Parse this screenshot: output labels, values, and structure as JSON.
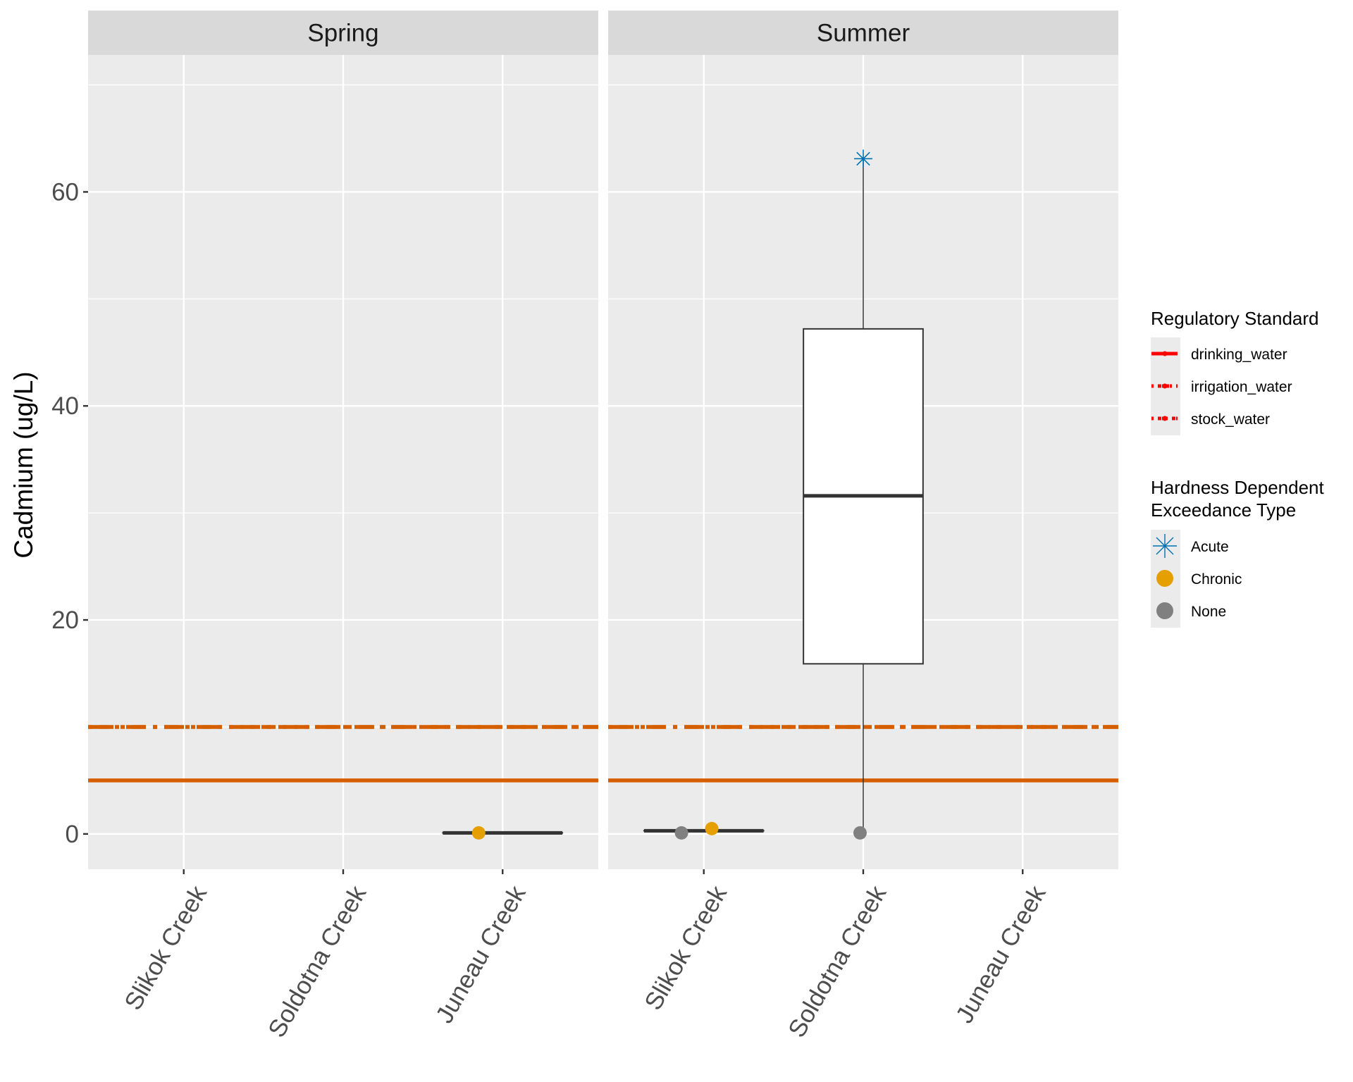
{
  "chart_data": {
    "type": "boxplot",
    "ylabel": "Cadmium (ug/L)",
    "xlabel": "",
    "ylim": [
      -3.3,
      72.8
    ],
    "y_ticks": [
      0,
      20,
      40,
      60
    ],
    "y_tick_labels": [
      "0",
      "20",
      "40",
      "60"
    ],
    "grid": true,
    "categories": [
      "Slikok Creek",
      "Soldotna Creek",
      "Juneau Creek"
    ],
    "facets": [
      {
        "name": "Spring",
        "boxes": [
          {
            "category": "Juneau Creek",
            "min": 0.1,
            "q1": 0.1,
            "median": 0.1,
            "q3": 0.1,
            "max": 0.1
          }
        ],
        "points": [
          {
            "category": "Juneau Creek",
            "value": 0.1,
            "type": "Chronic",
            "jitter": -0.15
          }
        ]
      },
      {
        "name": "Summer",
        "boxes": [
          {
            "category": "Slikok Creek",
            "min": 0.3,
            "q1": 0.3,
            "median": 0.3,
            "q3": 0.3,
            "max": 0.3
          },
          {
            "category": "Soldotna Creek",
            "min": 0.0,
            "q1": 15.9,
            "median": 31.6,
            "q3": 47.2,
            "max": 63.1
          }
        ],
        "points": [
          {
            "category": "Slikok Creek",
            "value": 0.1,
            "type": "None",
            "jitter": -0.14
          },
          {
            "category": "Slikok Creek",
            "value": 0.5,
            "type": "Chronic",
            "jitter": 0.05
          },
          {
            "category": "Soldotna Creek",
            "value": 0.1,
            "type": "None",
            "jitter": -0.02
          },
          {
            "category": "Soldotna Creek",
            "value": 63.1,
            "type": "Acute",
            "jitter": 0
          }
        ]
      }
    ],
    "reference_lines": [
      {
        "name": "drinking_water",
        "value": 5,
        "style": "solid"
      },
      {
        "name": "irrigation_water",
        "value": 10,
        "style": "longdash-dot"
      },
      {
        "name": "stock_water",
        "value": 10,
        "style": "dotdash"
      }
    ],
    "legends": [
      {
        "title": "Regulatory Standard",
        "placement": "right",
        "entries": [
          "drinking_water",
          "irrigation_water",
          "stock_water"
        ]
      },
      {
        "title_lines": [
          "Hardness Dependent",
          "Exceedance Type"
        ],
        "placement": "right",
        "entries": [
          "Acute",
          "Chronic",
          "None"
        ]
      }
    ],
    "colors": {
      "reference_line": "#D55E00",
      "legend_line": "#FF0000",
      "Acute": "#0072B2",
      "Chronic": "#E69F00",
      "None": "#808080",
      "panel_bg": "#EBEBEB",
      "strip_bg": "#D9D9D9"
    }
  }
}
